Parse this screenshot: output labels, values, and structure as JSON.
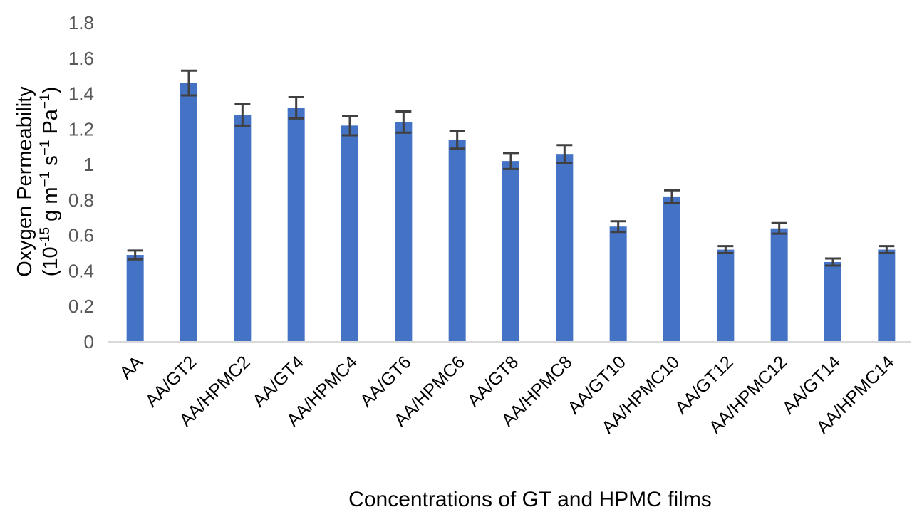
{
  "chart_data": {
    "type": "bar",
    "title": "",
    "xlabel": "Concentrations of GT and HPMC films",
    "ylabel": {
      "line1": "Oxygen Permeability",
      "line2": {
        "open": "(10",
        "exp1": "-15",
        "g_m": " g m",
        "exp2": "−1",
        "s": " s",
        "exp3": "−1",
        "pa": " Pa",
        "exp4": "−1",
        "close": ")"
      }
    },
    "ylim": [
      0,
      1.8
    ],
    "yticks": [
      0,
      0.2,
      0.4,
      0.6,
      0.8,
      1,
      1.2,
      1.4,
      1.6,
      1.8
    ],
    "ytick_labels": [
      "0",
      "0.2",
      "0.4",
      "0.6",
      "0.8",
      "1",
      "1.2",
      "1.4",
      "1.6",
      "1.8"
    ],
    "grid": false,
    "legend": "none",
    "bar_color": "#4472C4",
    "error_bar_color": "#404040",
    "categories": [
      "AA",
      "AA/GT2",
      "AA/HPMC2",
      "AA/GT4",
      "AA/HPMC4",
      "AA/GT6",
      "AA/HPMC6",
      "AA/GT8",
      "AA/HPMC8",
      "AA/GT10",
      "AA/HPMC10",
      "AA/GT12",
      "AA/HPMC12",
      "AA/GT14",
      "AA/HPMC14"
    ],
    "values": [
      0.49,
      1.46,
      1.28,
      1.32,
      1.22,
      1.24,
      1.14,
      1.02,
      1.06,
      0.65,
      0.82,
      0.52,
      0.64,
      0.45,
      0.52
    ],
    "errors": [
      0.025,
      0.07,
      0.06,
      0.06,
      0.055,
      0.06,
      0.05,
      0.045,
      0.05,
      0.03,
      0.035,
      0.02,
      0.03,
      0.02,
      0.02
    ]
  }
}
